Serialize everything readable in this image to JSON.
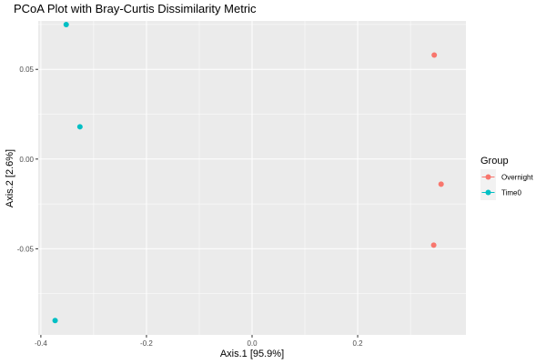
{
  "chart_data": {
    "type": "scatter",
    "title": "PCoA Plot with Bray-Curtis Dissimilarity Metric",
    "xlabel": "Axis.1   [95.9%]",
    "ylabel": "Axis.2   [2.6%]",
    "xlim": [
      -0.405,
      0.405
    ],
    "ylim": [
      -0.098,
      0.077
    ],
    "x_ticks": [
      -0.4,
      -0.2,
      0.0,
      0.2
    ],
    "x_tick_labels": [
      "-0.4",
      "-0.2",
      "0.0",
      "0.2"
    ],
    "y_ticks": [
      -0.05,
      0.0,
      0.05
    ],
    "y_tick_labels": [
      "-0.05",
      "0.00",
      "0.05"
    ],
    "grid": true,
    "legend": {
      "title": "Group",
      "placement": "right"
    },
    "series": [
      {
        "name": "Overnight",
        "color": "#F8766D",
        "points": [
          {
            "x": 0.345,
            "y": 0.058
          },
          {
            "x": 0.358,
            "y": -0.014
          },
          {
            "x": 0.344,
            "y": -0.048
          }
        ]
      },
      {
        "name": "Time0",
        "color": "#00BFC4",
        "points": [
          {
            "x": -0.352,
            "y": 0.075
          },
          {
            "x": -0.326,
            "y": 0.018
          },
          {
            "x": -0.373,
            "y": -0.09
          }
        ]
      }
    ]
  }
}
